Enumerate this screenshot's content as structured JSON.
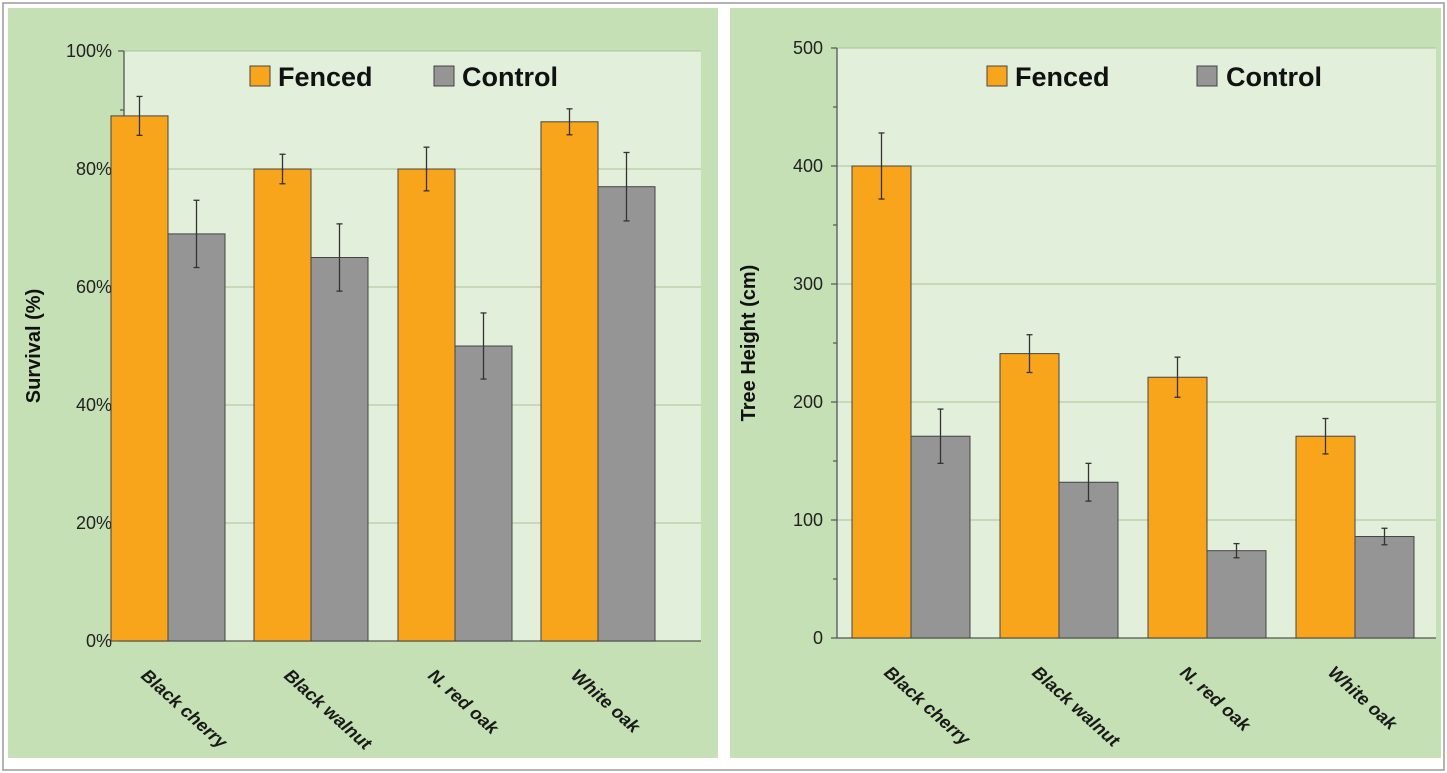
{
  "chart_data": [
    {
      "type": "bar",
      "categories": [
        "Black cherry",
        "Black walnut",
        "N. red oak",
        "White oak"
      ],
      "series": [
        {
          "name": "Fenced",
          "values": [
            89,
            80,
            80,
            88
          ],
          "errors": [
            3.3,
            2.5,
            3.7,
            2.2
          ],
          "color": "#f9a51c"
        },
        {
          "name": "Control",
          "values": [
            69,
            65,
            50,
            77
          ],
          "errors": [
            5.7,
            5.7,
            5.6,
            5.8
          ],
          "color": "#959595"
        }
      ],
      "ylabel": "Survival (%)",
      "ylim": [
        0,
        100
      ],
      "yticks": [
        "0%",
        "20%",
        "40%",
        "60%",
        "80%",
        "100%"
      ],
      "ytick_values": [
        0,
        20,
        40,
        60,
        80,
        100
      ],
      "grid": true,
      "legend": "top"
    },
    {
      "type": "bar",
      "categories": [
        "Black cherry",
        "Black walnut",
        "N. red oak",
        "White oak"
      ],
      "series": [
        {
          "name": "Fenced",
          "values": [
            400,
            241,
            221,
            171
          ],
          "errors": [
            28,
            16,
            17,
            15
          ],
          "color": "#f9a51c"
        },
        {
          "name": "Control",
          "values": [
            171,
            132,
            74,
            86
          ],
          "errors": [
            23,
            16,
            6,
            7
          ],
          "color": "#959595"
        }
      ],
      "ylabel": "Tree Height (cm)",
      "ylim": [
        0,
        500
      ],
      "yticks": [
        "0",
        "100",
        "200",
        "300",
        "400",
        "500"
      ],
      "ytick_values": [
        0,
        100,
        200,
        300,
        400,
        500
      ],
      "grid": true,
      "legend": "top"
    }
  ]
}
